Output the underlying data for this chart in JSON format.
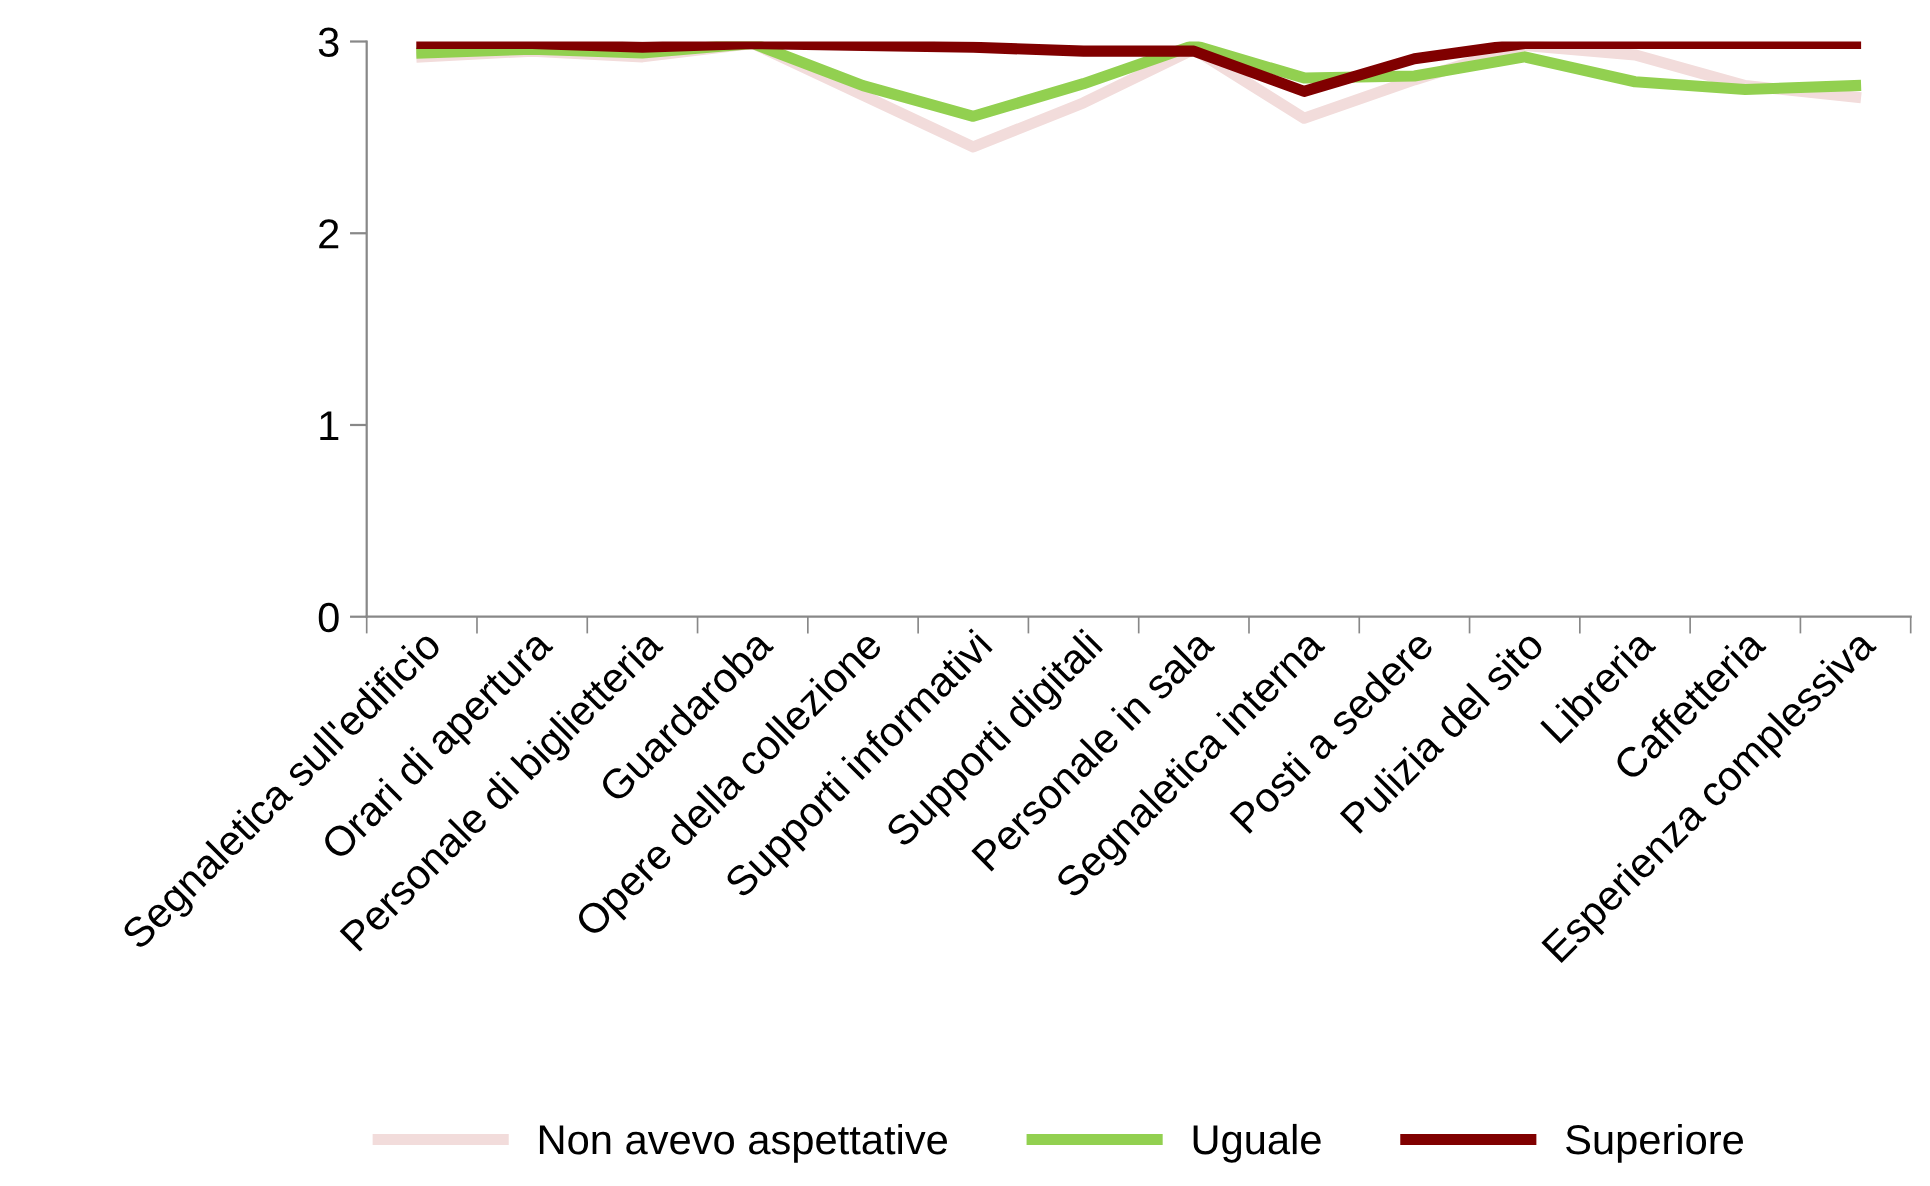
{
  "chart_data": {
    "type": "line",
    "categories": [
      "Segnaletica sull'edificio",
      "Orari di apertura",
      "Personale di biglietteria",
      "Guardaroba",
      "Opere della collezione",
      "Supporti informativi",
      "Supporti digitali",
      "Personale in sala",
      "Segnaletica interna",
      "Posti a sedere",
      "Pulizia del sito",
      "Libreria",
      "Caffetteria",
      "Esperienza complessiva"
    ],
    "series": [
      {
        "name": "Non avevo aspettative",
        "color": "#f2dcdb",
        "values": [
          2.92,
          2.95,
          2.92,
          2.99,
          2.72,
          2.45,
          2.68,
          2.96,
          2.6,
          2.8,
          2.98,
          2.93,
          2.77,
          2.71
        ]
      },
      {
        "name": "Uguale",
        "color": "#92d050",
        "values": [
          2.94,
          2.96,
          2.94,
          2.99,
          2.77,
          2.61,
          2.78,
          2.98,
          2.81,
          2.82,
          2.92,
          2.79,
          2.75,
          2.77
        ]
      },
      {
        "name": "Superiore",
        "color": "#800000",
        "values": [
          2.99,
          2.99,
          2.97,
          2.99,
          2.98,
          2.97,
          2.95,
          2.95,
          2.74,
          2.91,
          2.99,
          2.99,
          2.99,
          2.99
        ]
      }
    ],
    "ylim": [
      0,
      3
    ],
    "yticks": [
      0,
      1,
      2,
      3
    ],
    "grid": false,
    "legend": "bottom",
    "marker": "none",
    "line_style": "solid"
  }
}
